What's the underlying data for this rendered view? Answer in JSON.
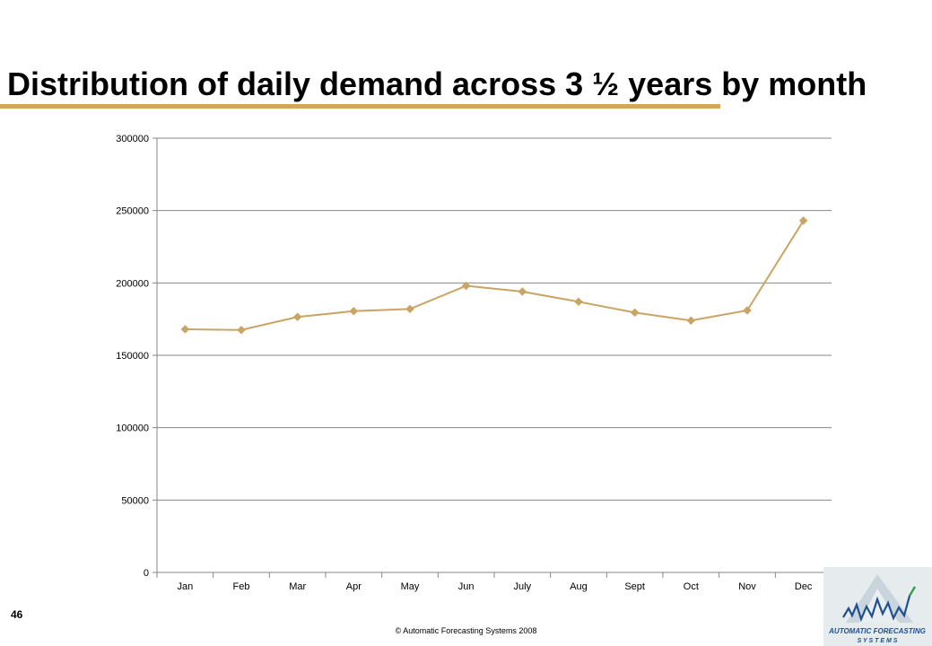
{
  "slide": {
    "title": "Distribution of daily demand across 3 ½ years by month",
    "page_number": "46",
    "footer": "© Automatic Forecasting Systems 2008",
    "logo_text_line1": "AUTOMATIC FORECASTING",
    "logo_text_line2": "S Y S T E M S"
  },
  "colors": {
    "accent": "#d4a55a",
    "series_line": "#c9a463",
    "gridline": "#878787"
  },
  "chart_data": {
    "type": "line",
    "title": "",
    "xlabel": "",
    "ylabel": "",
    "categories": [
      "Jan",
      "Feb",
      "Mar",
      "Apr",
      "May",
      "Jun",
      "July",
      "Aug",
      "Sept",
      "Oct",
      "Nov",
      "Dec"
    ],
    "series": [
      {
        "values": [
          168000,
          167500,
          176500,
          180500,
          182000,
          198000,
          194000,
          187000,
          179500,
          174000,
          181000,
          243000
        ]
      }
    ],
    "ylim": [
      0,
      300000
    ],
    "yticks": [
      0,
      50000,
      100000,
      150000,
      200000,
      250000,
      300000
    ],
    "grid": true,
    "legend": "none",
    "marker": "diamond"
  }
}
